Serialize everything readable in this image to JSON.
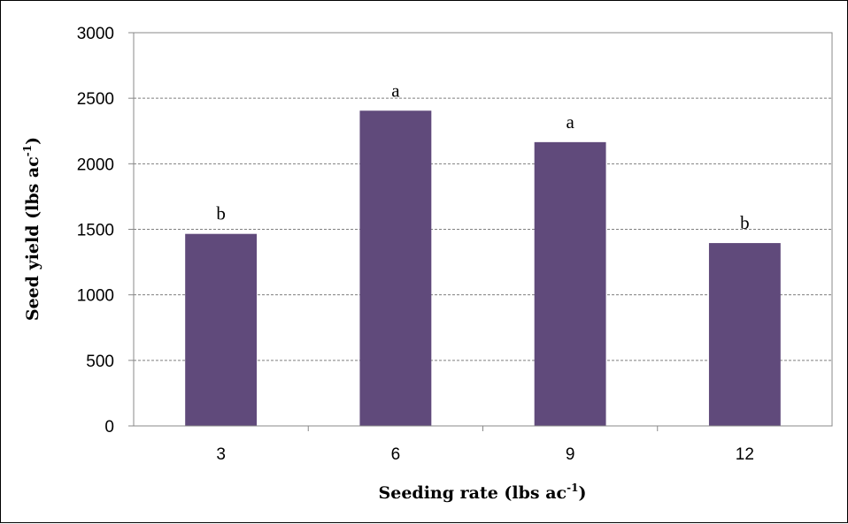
{
  "chart_data": {
    "type": "bar",
    "categories": [
      "3",
      "6",
      "9",
      "12"
    ],
    "values": [
      1465,
      2405,
      2165,
      1395
    ],
    "significance_letters": [
      "b",
      "a",
      "a",
      "b"
    ],
    "title": "",
    "xlabel": {
      "main": "Seeding rate (lbs ac",
      "sup": "-1",
      "close": ")"
    },
    "ylabel": {
      "main": "Seed yield (lbs ac",
      "sup": "-1",
      "close": ")"
    },
    "ylim": [
      0,
      3000
    ],
    "yticks": [
      0,
      500,
      1000,
      1500,
      2000,
      2500,
      3000
    ],
    "grid": "horizontal dashed",
    "bar_color": "#604a7b",
    "legend": "none"
  }
}
